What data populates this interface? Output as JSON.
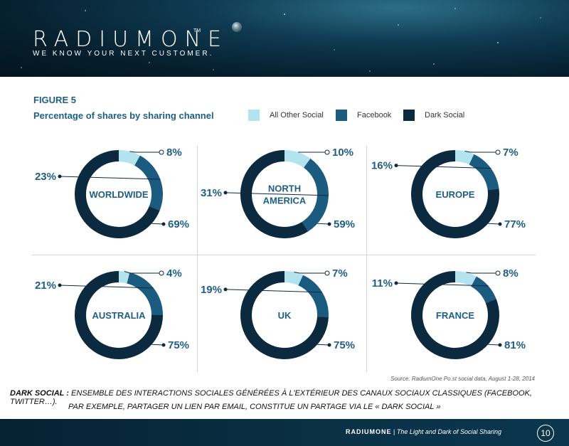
{
  "header": {
    "brand": "RADIUMONE",
    "trademark": "TM",
    "tagline": "WE KNOW YOUR NEXT CUSTOMER."
  },
  "figure": {
    "label": "FIGURE 5",
    "title": "Percentage of shares by sharing channel"
  },
  "legend": [
    {
      "label": "All Other Social",
      "color": "#b3e3ef"
    },
    {
      "label": "Facebook",
      "color": "#1b5b80"
    },
    {
      "label": "Dark Social",
      "color": "#0b2a3f"
    }
  ],
  "chart_data": [
    {
      "type": "pie",
      "donut": true,
      "region_lines": [
        "WORLDWIDE"
      ],
      "categories": [
        "All Other Social",
        "Facebook",
        "Dark Social"
      ],
      "values": [
        8,
        23,
        69
      ],
      "labels": [
        "8%",
        "23%",
        "69%"
      ]
    },
    {
      "type": "pie",
      "donut": true,
      "region_lines": [
        "NORTH",
        "AMERICA"
      ],
      "categories": [
        "All Other Social",
        "Facebook",
        "Dark Social"
      ],
      "values": [
        10,
        31,
        59
      ],
      "labels": [
        "10%",
        "31%",
        "59%"
      ]
    },
    {
      "type": "pie",
      "donut": true,
      "region_lines": [
        "EUROPE"
      ],
      "categories": [
        "All Other Social",
        "Facebook",
        "Dark Social"
      ],
      "values": [
        7,
        16,
        77
      ],
      "labels": [
        "7%",
        "16%",
        "77%"
      ]
    },
    {
      "type": "pie",
      "donut": true,
      "region_lines": [
        "AUSTRALIA"
      ],
      "categories": [
        "All Other Social",
        "Facebook",
        "Dark Social"
      ],
      "values": [
        4,
        21,
        75
      ],
      "labels": [
        "4%",
        "21%",
        "75%"
      ]
    },
    {
      "type": "pie",
      "donut": true,
      "region_lines": [
        "UK"
      ],
      "categories": [
        "All Other Social",
        "Facebook",
        "Dark Social"
      ],
      "values": [
        7,
        19,
        75
      ],
      "labels": [
        "7%",
        "19%",
        "75%"
      ]
    },
    {
      "type": "pie",
      "donut": true,
      "region_lines": [
        "FRANCE"
      ],
      "categories": [
        "All Other Social",
        "Facebook",
        "Dark Social"
      ],
      "values": [
        8,
        11,
        81
      ],
      "labels": [
        "8%",
        "11%",
        "81%"
      ]
    }
  ],
  "source": "Source: RadiumOne Po.st social data, August 1-28, 2014",
  "note": {
    "term": "DARK SOCIAL :",
    "line1": "ENSEMBLE DES INTERACTIONS SOCIALES GÉNÉRÉES À L'EXTÉRIEUR DES CANAUX SOCIAUX CLASSIQUES (FACEBOOK, TWITTER…).",
    "line2": "PAR EXEMPLE, PARTAGER UN LIEN PAR EMAIL, CONSTITUE UN PARTAGE VIA LE « DARK SOCIAL »"
  },
  "footer": {
    "brand": "RADIUMONE",
    "separator": "|",
    "subtitle": "The Light and Dark of Social Sharing",
    "page": "10"
  }
}
